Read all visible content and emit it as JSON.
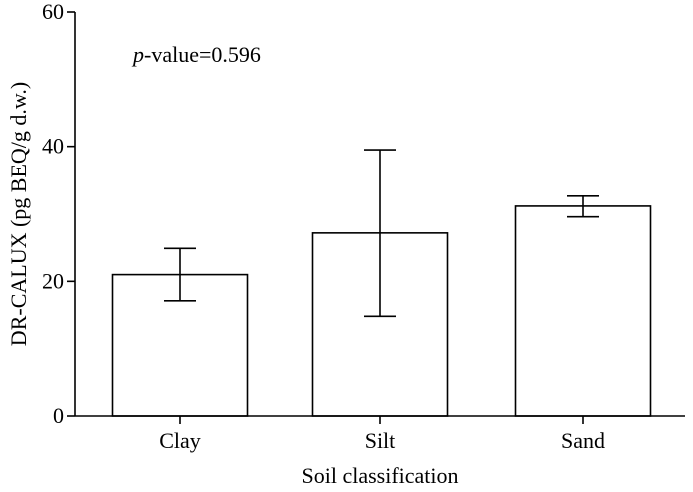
{
  "chart_data": {
    "type": "bar",
    "categories": [
      "Clay",
      "Silt",
      "Sand"
    ],
    "values": [
      21.0,
      27.2,
      31.2
    ],
    "error_upper": [
      24.9,
      39.5,
      32.7
    ],
    "error_lower": [
      17.1,
      14.8,
      29.6
    ],
    "xlabel": "Soil classification",
    "ylabel": "DR-CALUX (pg BEQ/g d.w.)",
    "ylim": [
      0,
      60
    ],
    "yticks": [
      0,
      20,
      40,
      60
    ],
    "grid": false,
    "bar_fill": "#ffffff",
    "bar_stroke": "#000000",
    "annotation": {
      "italic_part": "p",
      "text_part": "-value=0.596"
    }
  }
}
